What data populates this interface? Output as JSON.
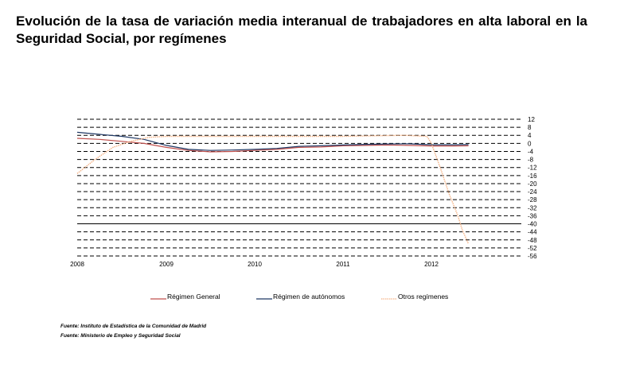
{
  "title": "Evolución de la tasa de variación media interanual de trabajadores en alta laboral en la Seguridad Social, por  regímenes",
  "sources": [
    "Fuente: Instituto de Estadística de la Comunidad de Madrid",
    "Fuente: Ministerio de Empleo y Seguridad Social"
  ],
  "chart_data": {
    "type": "line",
    "title": "Evolución de la tasa de variación media interanual de trabajadores en alta laboral en la Seguridad Social, por  regímenes",
    "xlabel": "",
    "ylabel": "",
    "x_ticks": [
      "2008",
      "2009",
      "2010",
      "2011",
      "2012"
    ],
    "y_ticks": [
      12,
      8,
      4,
      0,
      -4,
      -8,
      -12,
      -16,
      -20,
      -24,
      -28,
      -32,
      -36,
      -40,
      -44,
      -48,
      -52,
      -56
    ],
    "ylim": [
      -56,
      12
    ],
    "xlim": [
      2008.0,
      2012.9
    ],
    "grid": true,
    "legend_position": "bottom",
    "series": [
      {
        "name": "Régimen General",
        "color": "#c0504d",
        "x": [
          2008.0,
          2008.25,
          2008.5,
          2008.75,
          2009.0,
          2009.25,
          2009.5,
          2009.75,
          2010.0,
          2010.25,
          2010.5,
          2010.75,
          2011.0,
          2011.25,
          2011.5,
          2011.75,
          2012.0,
          2012.25,
          2012.42
        ],
        "values": [
          2.5,
          2.0,
          1.0,
          0.0,
          -2.0,
          -3.5,
          -4.2,
          -4.0,
          -3.5,
          -3.0,
          -2.0,
          -1.8,
          -1.2,
          -1.0,
          -0.8,
          -1.0,
          -1.3,
          -1.3,
          -1.2
        ]
      },
      {
        "name": "Régimen de autónomos",
        "color": "#1f3864",
        "x": [
          2008.0,
          2008.25,
          2008.5,
          2008.75,
          2009.0,
          2009.25,
          2009.5,
          2009.75,
          2010.0,
          2010.25,
          2010.5,
          2010.75,
          2011.0,
          2011.25,
          2011.5,
          2011.75,
          2012.0,
          2012.25,
          2012.42
        ],
        "values": [
          5.5,
          4.5,
          3.5,
          2.0,
          -1.0,
          -3.0,
          -3.5,
          -3.3,
          -3.0,
          -2.5,
          -1.5,
          -1.2,
          -0.8,
          -0.5,
          -0.3,
          -0.2,
          -0.7,
          -0.7,
          -0.6
        ]
      },
      {
        "name": "Otros regímenes",
        "color": "#f4b183",
        "x": [
          2008.0,
          2008.2,
          2008.4,
          2008.6,
          2008.8,
          2009.0,
          2009.5,
          2010.0,
          2010.5,
          2011.0,
          2011.4,
          2011.7,
          2011.95,
          2012.0,
          2012.1,
          2012.2,
          2012.3,
          2012.35,
          2012.42
        ],
        "values": [
          -15.0,
          -8.0,
          -2.0,
          1.0,
          3.0,
          3.5,
          3.5,
          3.5,
          3.5,
          3.5,
          3.8,
          4.0,
          3.5,
          0.0,
          -12.0,
          -25.0,
          -36.0,
          -43.0,
          -50.0
        ]
      }
    ]
  }
}
